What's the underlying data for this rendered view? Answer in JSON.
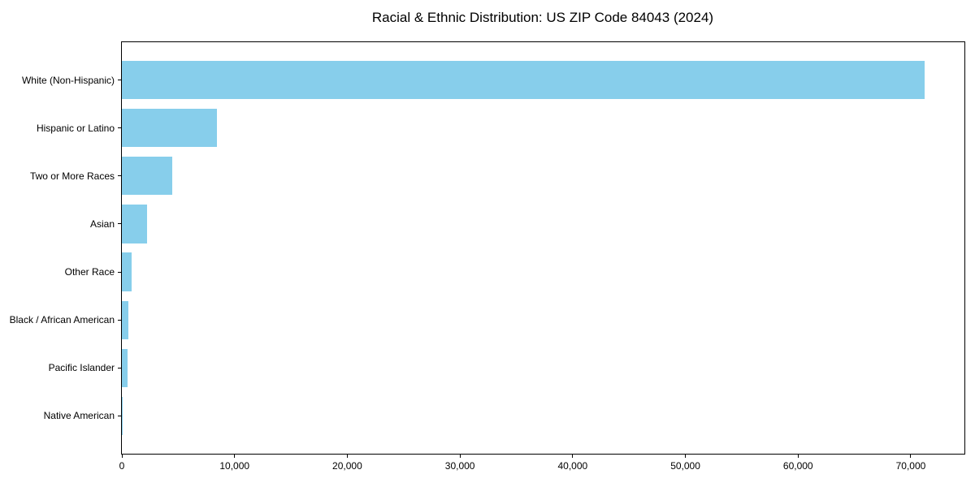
{
  "chart_data": {
    "type": "bar",
    "orientation": "horizontal",
    "title": "Racial & Ethnic Distribution: US ZIP Code 84043 (2024)",
    "categories": [
      "White (Non-Hispanic)",
      "Hispanic or Latino",
      "Two or More Races",
      "Asian",
      "Other Race",
      "Black / African American",
      "Pacific Islander",
      "Native American"
    ],
    "values": [
      71200,
      8440,
      4470,
      2240,
      860,
      580,
      490,
      60
    ],
    "xlabel": "",
    "ylabel": "",
    "xlim": [
      0,
      74760
    ],
    "xticks": [
      {
        "value": 0,
        "label": "0"
      },
      {
        "value": 10000,
        "label": "10,000"
      },
      {
        "value": 20000,
        "label": "20,000"
      },
      {
        "value": 30000,
        "label": "30,000"
      },
      {
        "value": 40000,
        "label": "40,000"
      },
      {
        "value": 50000,
        "label": "50,000"
      },
      {
        "value": 60000,
        "label": "60,000"
      },
      {
        "value": 70000,
        "label": "70,000"
      }
    ],
    "bar_color": "#87CEEB",
    "frame_color": "#000000",
    "text_color": "#000000",
    "grid": false,
    "legend_position": "none",
    "sort_order": "descending",
    "bar_height_fraction": 0.8
  }
}
